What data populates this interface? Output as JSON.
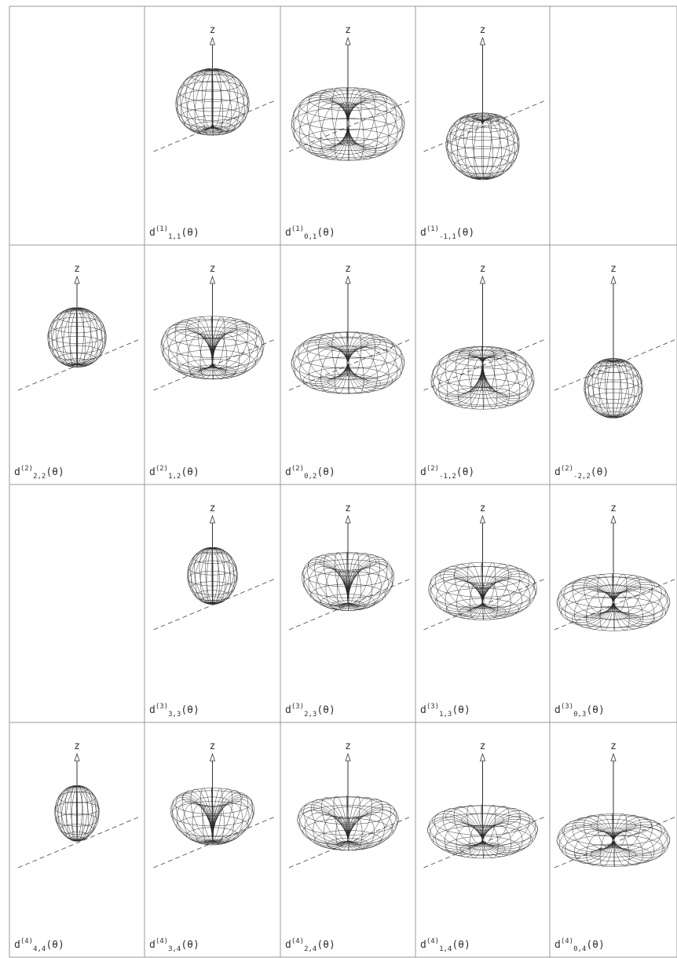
{
  "axis_label": "z",
  "function_symbol": "d",
  "argument": "(θ)",
  "rows": [
    [
      null,
      {
        "sup": "(1)",
        "sub": "1,1"
      },
      {
        "sup": "(1)",
        "sub": "0,1"
      },
      {
        "sup": "(1)",
        "sub": "-1,1"
      },
      null
    ],
    [
      {
        "sup": "(2)",
        "sub": "2,2"
      },
      {
        "sup": "(2)",
        "sub": "1,2"
      },
      {
        "sup": "(2)",
        "sub": "0,2"
      },
      {
        "sup": "(2)",
        "sub": "-1,2"
      },
      {
        "sup": "(2)",
        "sub": "-2,2"
      }
    ],
    [
      null,
      {
        "sup": "(3)",
        "sub": "3,3"
      },
      {
        "sup": "(3)",
        "sub": "2,3"
      },
      {
        "sup": "(3)",
        "sub": "1,3"
      },
      {
        "sup": "(3)",
        "sub": "0,3"
      }
    ],
    [
      {
        "sup": "(4)",
        "sub": "4,4"
      },
      {
        "sup": "(4)",
        "sub": "3,4"
      },
      {
        "sup": "(4)",
        "sub": "2,4"
      },
      {
        "sup": "(4)",
        "sub": "1,4"
      },
      {
        "sup": "(4)",
        "sub": "0,4"
      }
    ]
  ]
}
